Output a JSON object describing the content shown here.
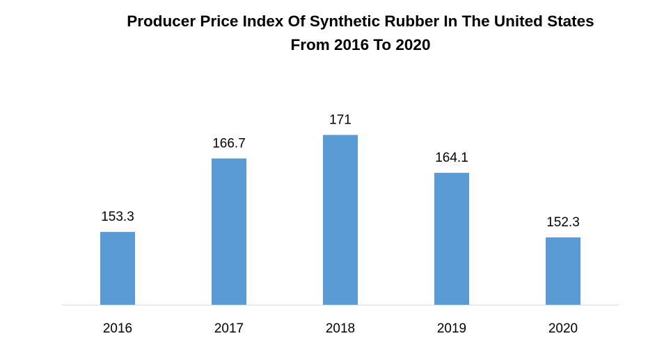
{
  "chart_data": {
    "type": "bar",
    "title_lines": [
      "Producer Price Index Of Synthetic Rubber In The United States",
      "From 2016 To 2020"
    ],
    "categories": [
      "2016",
      "2017",
      "2018",
      "2019",
      "2020"
    ],
    "values": [
      153.3,
      166.7,
      171,
      164.1,
      152.3
    ],
    "value_labels": [
      "153.3",
      "166.7",
      "171",
      "164.1",
      "152.3"
    ],
    "xlabel": "",
    "ylabel": "",
    "ylim": [
      140,
      180
    ],
    "grid": false,
    "legend": "none",
    "bar_color": "#5B9BD5",
    "axis_color": "#D9D9D9"
  }
}
